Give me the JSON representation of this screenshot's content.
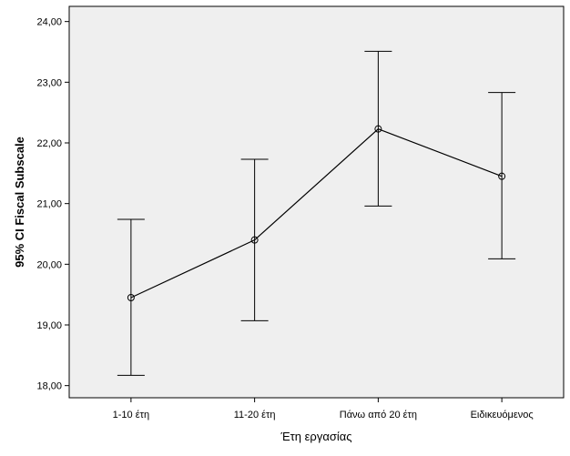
{
  "chart_data": {
    "type": "line",
    "categories": [
      "1-10 έτη",
      "11-20 έτη",
      "Πάνω από 20 έτη",
      "Ειδικευόμενος"
    ],
    "means": [
      19.45,
      20.4,
      22.23,
      21.45
    ],
    "ci_lower": [
      18.17,
      19.07,
      20.96,
      20.09
    ],
    "ci_upper": [
      20.74,
      21.73,
      23.51,
      22.83
    ],
    "xlabel": "Έτη εργασίας",
    "ylabel": "95% CI Fiscal Subscale",
    "ylim": [
      17.8,
      24.25
    ],
    "yticks": [
      18,
      19,
      20,
      21,
      22,
      23,
      24
    ],
    "ytick_labels": [
      "18,00",
      "19,00",
      "20,00",
      "21,00",
      "22,00",
      "23,00",
      "24,00"
    ],
    "grid": false,
    "legend": "none",
    "colors": {
      "plot_background": "#efefef",
      "line": "#000000",
      "frame": "#000000"
    }
  }
}
